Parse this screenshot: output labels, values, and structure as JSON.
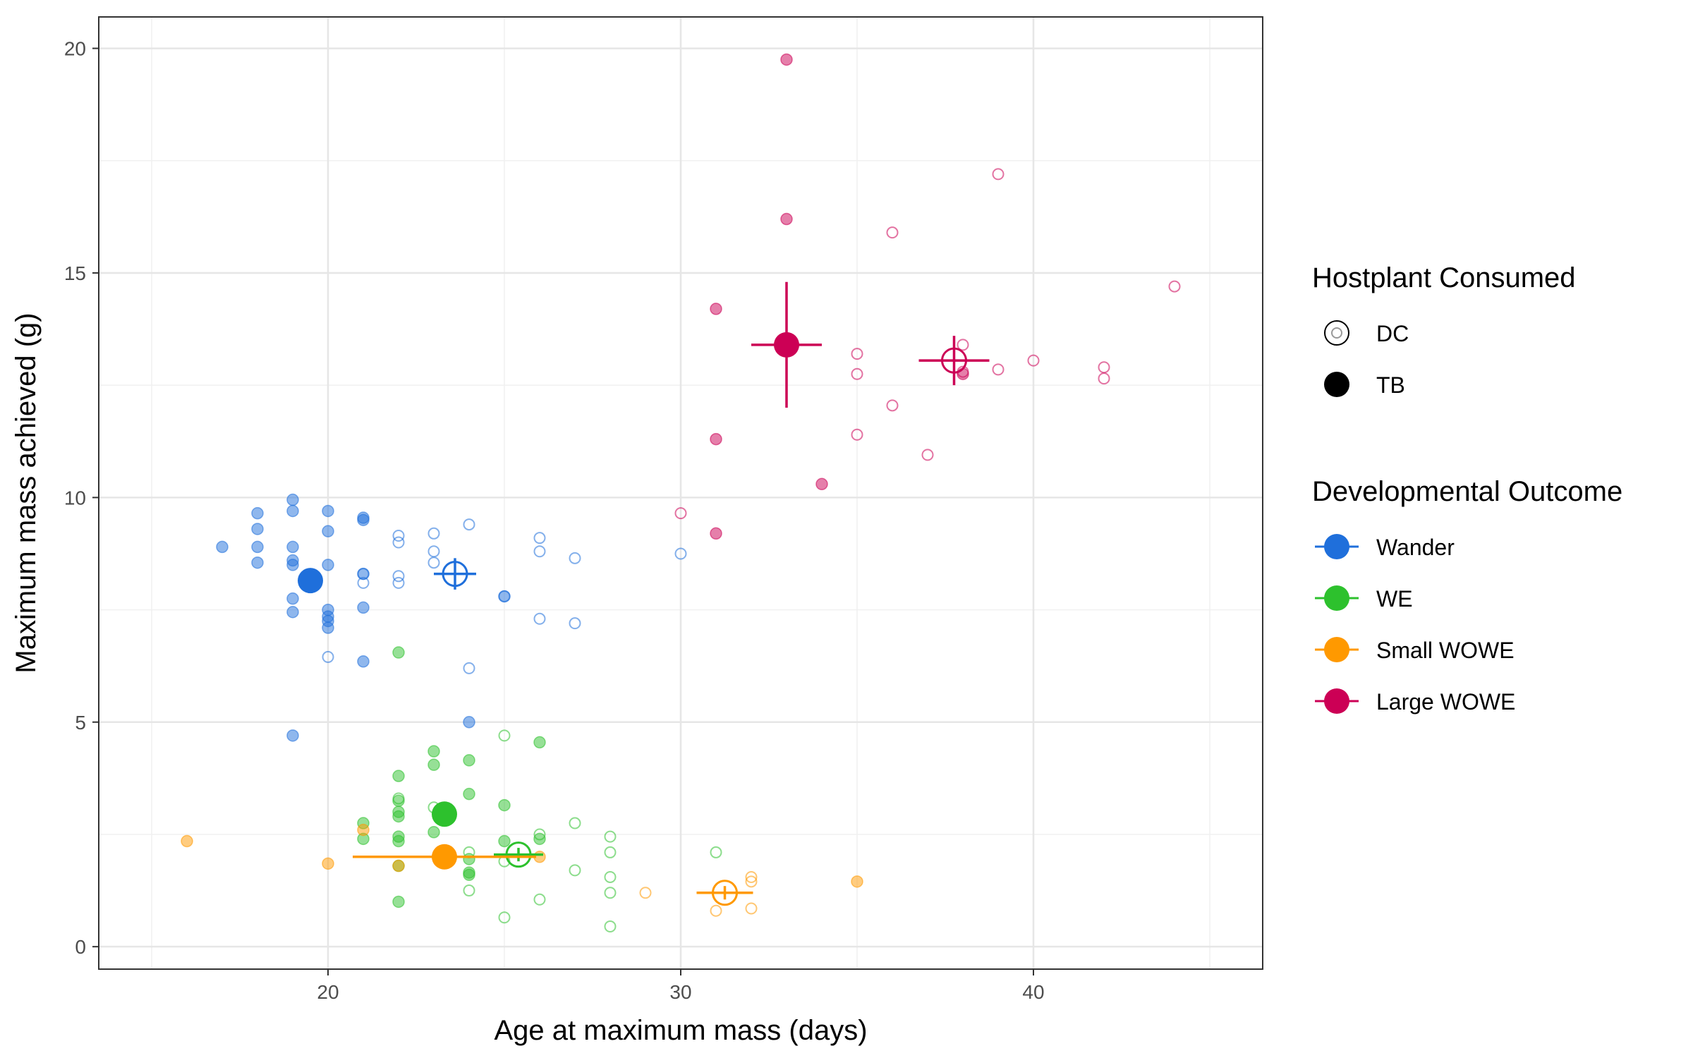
{
  "chart_data": {
    "type": "scatter",
    "title": "",
    "xlabel": "Age at maximum mass (days)",
    "ylabel": "Maximum mass achieved (g)",
    "xlim": [
      13.5,
      46.5
    ],
    "ylim": [
      -0.5,
      20.7
    ],
    "xticks": [
      20,
      30,
      40
    ],
    "yticks": [
      0,
      5,
      10,
      15,
      20
    ],
    "grid": true,
    "legend_position": "right",
    "legends": {
      "hostplant": {
        "title": "Hostplant Consumed",
        "items": [
          {
            "label": "DC",
            "shape": "open-circle"
          },
          {
            "label": "TB",
            "shape": "filled-circle"
          }
        ]
      },
      "outcome": {
        "title": "Developmental Outcome",
        "items": [
          {
            "label": "Wander",
            "color": "#1F6FDB"
          },
          {
            "label": "WE",
            "color": "#2DC12D"
          },
          {
            "label": "Small WOWE",
            "color": "#FF9900"
          },
          {
            "label": "Large WOWE",
            "color": "#CC0055"
          }
        ]
      }
    },
    "series": [
      {
        "outcome": "Wander",
        "hostplant": "TB",
        "color": "#1F6FDB",
        "points": [
          [
            17,
            8.9
          ],
          [
            18,
            9.65
          ],
          [
            18,
            9.3
          ],
          [
            18,
            8.9
          ],
          [
            18,
            8.55
          ],
          [
            19,
            9.95
          ],
          [
            19,
            9.7
          ],
          [
            19,
            8.9
          ],
          [
            19,
            8.6
          ],
          [
            19,
            8.5
          ],
          [
            19,
            7.75
          ],
          [
            19,
            7.45
          ],
          [
            19,
            4.7
          ],
          [
            20,
            9.7
          ],
          [
            20,
            9.25
          ],
          [
            20,
            8.5
          ],
          [
            20,
            7.5
          ],
          [
            20,
            7.35
          ],
          [
            20,
            7.25
          ],
          [
            20,
            7.1
          ],
          [
            21,
            9.5
          ],
          [
            21,
            9.55
          ],
          [
            21,
            8.3
          ],
          [
            21,
            7.55
          ],
          [
            21,
            6.35
          ],
          [
            24,
            5.0
          ],
          [
            25,
            7.8
          ]
        ],
        "mean": {
          "x": 19.5,
          "y": 8.15,
          "xerr": 0.15,
          "yerr": 0.2
        }
      },
      {
        "outcome": "Wander",
        "hostplant": "DC",
        "color": "#1F6FDB",
        "points": [
          [
            20,
            6.45
          ],
          [
            21,
            8.3
          ],
          [
            21,
            8.1
          ],
          [
            22,
            9.15
          ],
          [
            22,
            9.0
          ],
          [
            22,
            8.25
          ],
          [
            22,
            8.1
          ],
          [
            23,
            9.2
          ],
          [
            23,
            8.8
          ],
          [
            23,
            8.55
          ],
          [
            24,
            9.4
          ],
          [
            24,
            6.2
          ],
          [
            25,
            7.8
          ],
          [
            26,
            9.1
          ],
          [
            26,
            8.8
          ],
          [
            26,
            7.3
          ],
          [
            27,
            8.65
          ],
          [
            27,
            7.2
          ],
          [
            30,
            8.75
          ]
        ],
        "mean": {
          "x": 23.6,
          "y": 8.3,
          "xerr": 0.6,
          "yerr": 0.35
        }
      },
      {
        "outcome": "WE",
        "hostplant": "TB",
        "color": "#2DC12D",
        "points": [
          [
            21,
            2.75
          ],
          [
            21,
            2.4
          ],
          [
            22,
            6.55
          ],
          [
            22,
            3.8
          ],
          [
            22,
            3.25
          ],
          [
            22,
            3.0
          ],
          [
            22,
            2.9
          ],
          [
            22,
            2.45
          ],
          [
            22,
            2.35
          ],
          [
            22,
            1.8
          ],
          [
            22,
            1.0
          ],
          [
            23,
            4.35
          ],
          [
            23,
            4.05
          ],
          [
            23,
            2.55
          ],
          [
            24,
            4.15
          ],
          [
            24,
            3.4
          ],
          [
            24,
            1.95
          ],
          [
            24,
            1.65
          ],
          [
            24,
            1.6
          ],
          [
            25,
            3.15
          ],
          [
            25,
            2.35
          ],
          [
            26,
            4.55
          ],
          [
            26,
            2.4
          ]
        ],
        "mean": {
          "x": 23.3,
          "y": 2.95,
          "xerr": 0.15,
          "yerr": 0.15
        }
      },
      {
        "outcome": "WE",
        "hostplant": "DC",
        "color": "#2DC12D",
        "points": [
          [
            22,
            3.3
          ],
          [
            23,
            3.1
          ],
          [
            24,
            2.1
          ],
          [
            24,
            1.25
          ],
          [
            25,
            4.7
          ],
          [
            25,
            1.9
          ],
          [
            25,
            0.65
          ],
          [
            26,
            2.5
          ],
          [
            26,
            1.05
          ],
          [
            27,
            2.75
          ],
          [
            27,
            1.7
          ],
          [
            28,
            2.45
          ],
          [
            28,
            2.1
          ],
          [
            28,
            1.55
          ],
          [
            28,
            1.2
          ],
          [
            28,
            0.45
          ],
          [
            31,
            2.1
          ]
        ],
        "mean": {
          "x": 25.4,
          "y": 2.05,
          "xerr": 0.7,
          "yerr": 0.15
        }
      },
      {
        "outcome": "Small WOWE",
        "hostplant": "TB",
        "color": "#FF9900",
        "points": [
          [
            16,
            2.35
          ],
          [
            20,
            1.85
          ],
          [
            21,
            2.6
          ],
          [
            22,
            1.8
          ],
          [
            26,
            2.0
          ],
          [
            35,
            1.45
          ]
        ],
        "mean": {
          "x": 23.3,
          "y": 2.0,
          "xerr": 2.6,
          "yerr": 0.1
        }
      },
      {
        "outcome": "Small WOWE",
        "hostplant": "DC",
        "color": "#FF9900",
        "points": [
          [
            29,
            1.2
          ],
          [
            31,
            0.8
          ],
          [
            32,
            1.55
          ],
          [
            32,
            1.45
          ],
          [
            32,
            0.85
          ]
        ],
        "mean": {
          "x": 31.25,
          "y": 1.2,
          "xerr": 0.8,
          "yerr": 0.15
        }
      },
      {
        "outcome": "Large WOWE",
        "hostplant": "TB",
        "color": "#CC0055",
        "points": [
          [
            31,
            14.2
          ],
          [
            31,
            11.3
          ],
          [
            31,
            9.2
          ],
          [
            33,
            19.75
          ],
          [
            33,
            16.2
          ],
          [
            34,
            10.3
          ],
          [
            38,
            12.75
          ]
        ],
        "mean": {
          "x": 33.0,
          "y": 13.4,
          "xerr": 1.0,
          "yerr": 1.4
        }
      },
      {
        "outcome": "Large WOWE",
        "hostplant": "DC",
        "color": "#CC0055",
        "points": [
          [
            30,
            9.65
          ],
          [
            35,
            13.2
          ],
          [
            35,
            12.75
          ],
          [
            35,
            11.4
          ],
          [
            36,
            15.9
          ],
          [
            36,
            12.05
          ],
          [
            37,
            10.95
          ],
          [
            38,
            13.4
          ],
          [
            38,
            12.8
          ],
          [
            39,
            17.2
          ],
          [
            39,
            12.85
          ],
          [
            40,
            13.05
          ],
          [
            42,
            12.9
          ],
          [
            42,
            12.65
          ],
          [
            44,
            14.7
          ]
        ],
        "mean": {
          "x": 37.75,
          "y": 13.05,
          "xerr": 1.0,
          "yerr": 0.55
        }
      }
    ]
  }
}
